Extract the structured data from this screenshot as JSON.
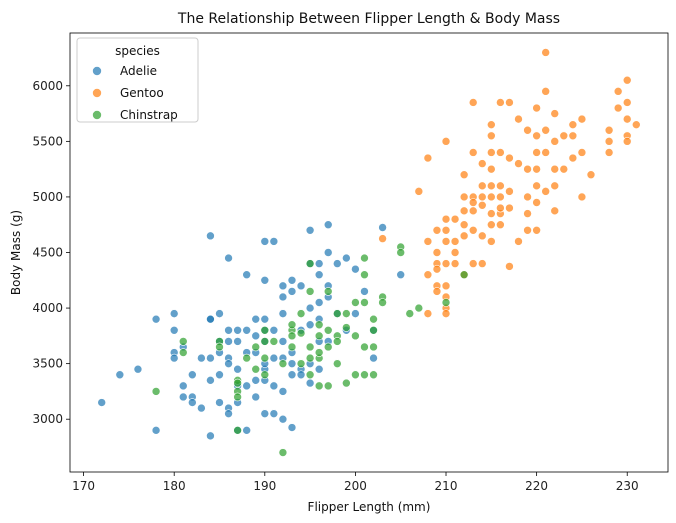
{
  "chart_data": {
    "type": "scatter",
    "title": "The Relationship Between Flipper Length & Body Mass",
    "xlabel": "Flipper Length (mm)",
    "ylabel": "Body Mass (g)",
    "xlim": [
      168.5,
      234.5
    ],
    "ylim": [
      2525,
      6475
    ],
    "xticks": [
      170,
      180,
      190,
      200,
      210,
      220,
      230
    ],
    "yticks": [
      3000,
      3500,
      4000,
      4500,
      5000,
      5500,
      6000
    ],
    "grid": false,
    "legend": {
      "title": "species",
      "position": "top-left"
    },
    "series": [
      {
        "name": "Adelie",
        "color": "#1f77b4",
        "points": [
          [
            172,
            3150
          ],
          [
            174,
            3400
          ],
          [
            176,
            3450
          ],
          [
            178,
            3900
          ],
          [
            178,
            2900
          ],
          [
            180,
            3950
          ],
          [
            180,
            3800
          ],
          [
            180,
            3600
          ],
          [
            180,
            3550
          ],
          [
            181,
            3300
          ],
          [
            181,
            3200
          ],
          [
            182,
            3200
          ],
          [
            182,
            3150
          ],
          [
            182,
            3400
          ],
          [
            183,
            3550
          ],
          [
            183,
            3100
          ],
          [
            184,
            4650
          ],
          [
            184,
            3900
          ],
          [
            184,
            3550
          ],
          [
            184,
            3350
          ],
          [
            184,
            2850
          ],
          [
            185,
            3950
          ],
          [
            185,
            3700
          ],
          [
            185,
            3600
          ],
          [
            185,
            3400
          ],
          [
            185,
            3150
          ],
          [
            186,
            4450
          ],
          [
            186,
            3800
          ],
          [
            186,
            3550
          ],
          [
            186,
            3500
          ],
          [
            186,
            3100
          ],
          [
            186,
            3050
          ],
          [
            187,
            3800
          ],
          [
            187,
            3700
          ],
          [
            187,
            3450
          ],
          [
            187,
            3300
          ],
          [
            187,
            3150
          ],
          [
            187,
            2900
          ],
          [
            188,
            4300
          ],
          [
            188,
            3600
          ],
          [
            188,
            3300
          ],
          [
            188,
            2900
          ],
          [
            189,
            3900
          ],
          [
            189,
            3750
          ],
          [
            189,
            3600
          ],
          [
            189,
            3350
          ],
          [
            189,
            3200
          ],
          [
            190,
            4600
          ],
          [
            190,
            4250
          ],
          [
            190,
            3900
          ],
          [
            190,
            3800
          ],
          [
            190,
            3700
          ],
          [
            190,
            3450
          ],
          [
            190,
            3350
          ],
          [
            190,
            3050
          ],
          [
            191,
            4600
          ],
          [
            191,
            3800
          ],
          [
            191,
            3550
          ],
          [
            191,
            3300
          ],
          [
            191,
            3050
          ],
          [
            192,
            4200
          ],
          [
            192,
            4100
          ],
          [
            192,
            3950
          ],
          [
            192,
            3550
          ],
          [
            192,
            3250
          ],
          [
            192,
            3000
          ],
          [
            193,
            4250
          ],
          [
            193,
            4150
          ],
          [
            193,
            3500
          ],
          [
            193,
            3400
          ],
          [
            193,
            2925
          ],
          [
            194,
            4200
          ],
          [
            194,
            3800
          ],
          [
            194,
            3450
          ],
          [
            194,
            3400
          ],
          [
            195,
            4700
          ],
          [
            195,
            4400
          ],
          [
            195,
            4000
          ],
          [
            195,
            3500
          ],
          [
            195,
            3325
          ],
          [
            196,
            4400
          ],
          [
            196,
            4300
          ],
          [
            196,
            4050
          ],
          [
            196,
            3900
          ],
          [
            196,
            3700
          ],
          [
            196,
            3450
          ],
          [
            197,
            4750
          ],
          [
            197,
            4500
          ],
          [
            197,
            4200
          ],
          [
            197,
            4100
          ],
          [
            197,
            3700
          ],
          [
            198,
            4400
          ],
          [
            198,
            3950
          ],
          [
            199,
            4450
          ],
          [
            199,
            3800
          ],
          [
            200,
            4350
          ],
          [
            200,
            3950
          ],
          [
            201,
            4150
          ],
          [
            202,
            3800
          ],
          [
            202,
            3550
          ],
          [
            203,
            4725
          ],
          [
            205,
            4300
          ],
          [
            184,
            3900
          ],
          [
            186,
            3700
          ],
          [
            188,
            3800
          ],
          [
            190,
            3500
          ],
          [
            192,
            3700
          ],
          [
            193,
            3600
          ],
          [
            195,
            3850
          ],
          [
            181,
            3650
          ]
        ]
      },
      {
        "name": "Gentoo",
        "color": "#ff7f0e",
        "points": [
          [
            203,
            4625
          ],
          [
            207,
            5050
          ],
          [
            208,
            5350
          ],
          [
            208,
            4600
          ],
          [
            208,
            4300
          ],
          [
            208,
            3950
          ],
          [
            209,
            4700
          ],
          [
            209,
            4500
          ],
          [
            209,
            4400
          ],
          [
            209,
            4350
          ],
          [
            209,
            4200
          ],
          [
            209,
            4150
          ],
          [
            210,
            5500
          ],
          [
            210,
            4800
          ],
          [
            210,
            4700
          ],
          [
            210,
            4600
          ],
          [
            210,
            4400
          ],
          [
            210,
            4200
          ],
          [
            210,
            4100
          ],
          [
            210,
            4000
          ],
          [
            210,
            3950
          ],
          [
            211,
            4800
          ],
          [
            211,
            4600
          ],
          [
            211,
            4500
          ],
          [
            211,
            4400
          ],
          [
            212,
            5200
          ],
          [
            212,
            4875
          ],
          [
            212,
            4750
          ],
          [
            212,
            4650
          ],
          [
            212,
            4300
          ],
          [
            213,
            5850
          ],
          [
            213,
            5400
          ],
          [
            213,
            5000
          ],
          [
            213,
            4950
          ],
          [
            213,
            4875
          ],
          [
            213,
            4700
          ],
          [
            213,
            4400
          ],
          [
            214,
            5300
          ],
          [
            214,
            5100
          ],
          [
            214,
            4925
          ],
          [
            214,
            4650
          ],
          [
            214,
            4400
          ],
          [
            215,
            5650
          ],
          [
            215,
            5550
          ],
          [
            215,
            5400
          ],
          [
            215,
            5250
          ],
          [
            215,
            5100
          ],
          [
            215,
            5000
          ],
          [
            215,
            4850
          ],
          [
            215,
            4750
          ],
          [
            215,
            4600
          ],
          [
            216,
            5850
          ],
          [
            216,
            5400
          ],
          [
            216,
            5000
          ],
          [
            216,
            4850
          ],
          [
            216,
            4750
          ],
          [
            216,
            4900
          ],
          [
            217,
            5850
          ],
          [
            217,
            5350
          ],
          [
            217,
            5050
          ],
          [
            217,
            4900
          ],
          [
            217,
            4375
          ],
          [
            218,
            5700
          ],
          [
            218,
            5300
          ],
          [
            218,
            4600
          ],
          [
            219,
            5600
          ],
          [
            219,
            5250
          ],
          [
            219,
            4850
          ],
          [
            219,
            4700
          ],
          [
            220,
            5800
          ],
          [
            220,
            5550
          ],
          [
            220,
            5400
          ],
          [
            220,
            5250
          ],
          [
            220,
            5100
          ],
          [
            220,
            4950
          ],
          [
            220,
            4700
          ],
          [
            221,
            6300
          ],
          [
            221,
            5950
          ],
          [
            221,
            5600
          ],
          [
            221,
            5400
          ],
          [
            221,
            5050
          ],
          [
            222,
            5750
          ],
          [
            222,
            5500
          ],
          [
            222,
            5250
          ],
          [
            222,
            4875
          ],
          [
            222,
            5100
          ],
          [
            223,
            5550
          ],
          [
            223,
            5250
          ],
          [
            224,
            5550
          ],
          [
            224,
            5650
          ],
          [
            224,
            5350
          ],
          [
            225,
            5700
          ],
          [
            225,
            5400
          ],
          [
            225,
            5000
          ],
          [
            226,
            5200
          ],
          [
            228,
            5600
          ],
          [
            228,
            5400
          ],
          [
            229,
            5950
          ],
          [
            229,
            5800
          ],
          [
            230,
            6050
          ],
          [
            230,
            5850
          ],
          [
            230,
            5700
          ],
          [
            230,
            5550
          ],
          [
            230,
            5500
          ],
          [
            231,
            5650
          ],
          [
            228,
            5500
          ],
          [
            219,
            5000
          ],
          [
            216,
            5100
          ],
          [
            214,
            5000
          ],
          [
            212,
            5000
          ]
        ]
      },
      {
        "name": "Chinstrap",
        "color": "#2ca02c",
        "points": [
          [
            178,
            3250
          ],
          [
            181,
            3700
          ],
          [
            181,
            3600
          ],
          [
            185,
            3700
          ],
          [
            185,
            3650
          ],
          [
            187,
            3350
          ],
          [
            187,
            3250
          ],
          [
            187,
            2900
          ],
          [
            187,
            3200
          ],
          [
            188,
            3550
          ],
          [
            189,
            3650
          ],
          [
            189,
            3450
          ],
          [
            190,
            3800
          ],
          [
            190,
            3700
          ],
          [
            190,
            3550
          ],
          [
            190,
            3400
          ],
          [
            191,
            3700
          ],
          [
            192,
            3500
          ],
          [
            192,
            2700
          ],
          [
            193,
            3800
          ],
          [
            193,
            3750
          ],
          [
            193,
            3650
          ],
          [
            194,
            3775
          ],
          [
            194,
            3500
          ],
          [
            195,
            4400
          ],
          [
            195,
            4150
          ],
          [
            195,
            3650
          ],
          [
            195,
            3550
          ],
          [
            195,
            3400
          ],
          [
            196,
            3850
          ],
          [
            196,
            3750
          ],
          [
            196,
            3550
          ],
          [
            196,
            3300
          ],
          [
            197,
            4150
          ],
          [
            197,
            3800
          ],
          [
            197,
            3650
          ],
          [
            197,
            3300
          ],
          [
            198,
            3950
          ],
          [
            198,
            3750
          ],
          [
            198,
            3700
          ],
          [
            198,
            3500
          ],
          [
            199,
            3825
          ],
          [
            199,
            3325
          ],
          [
            200,
            4050
          ],
          [
            200,
            3750
          ],
          [
            200,
            3400
          ],
          [
            201,
            4450
          ],
          [
            201,
            4300
          ],
          [
            201,
            4050
          ],
          [
            201,
            3650
          ],
          [
            201,
            3400
          ],
          [
            202,
            3900
          ],
          [
            202,
            3800
          ],
          [
            202,
            3400
          ],
          [
            203,
            4100
          ],
          [
            203,
            4050
          ],
          [
            205,
            4550
          ],
          [
            205,
            4500
          ],
          [
            206,
            3950
          ],
          [
            207,
            4000
          ],
          [
            210,
            4050
          ],
          [
            212,
            4300
          ],
          [
            193,
            3850
          ],
          [
            194,
            3950
          ],
          [
            199,
            3950
          ],
          [
            202,
            3650
          ],
          [
            196,
            3600
          ],
          [
            187,
            3325
          ]
        ]
      }
    ]
  }
}
